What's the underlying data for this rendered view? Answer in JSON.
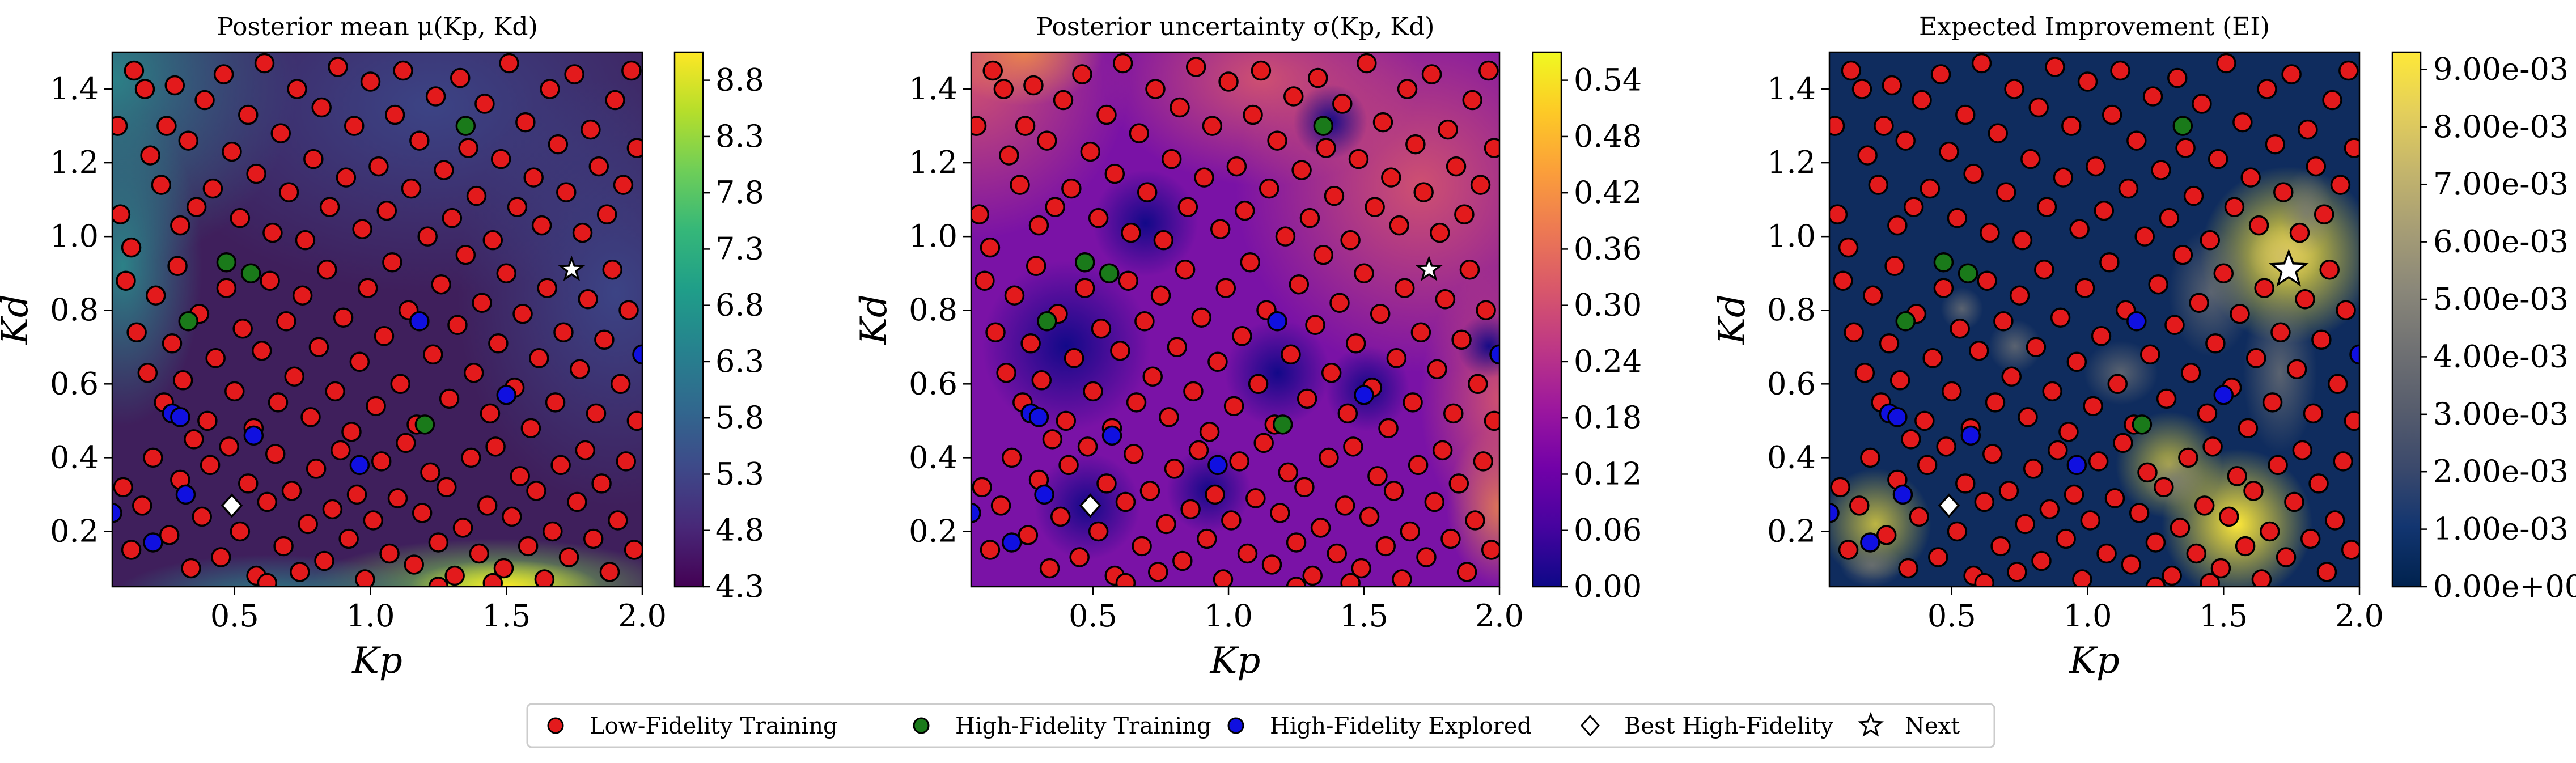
{
  "chart_data": [
    {
      "type": "heatmap",
      "title": "Posterior mean μ(Kp, Kd)",
      "xlabel": "Kp",
      "ylabel": "Kd",
      "xlim": [
        0.05,
        2.0
      ],
      "ylim": [
        0.05,
        1.5
      ],
      "xticks": [
        "0.5",
        "1.0",
        "1.5",
        "2.0"
      ],
      "yticks": [
        "0.2",
        "0.4",
        "0.6",
        "0.8",
        "1.0",
        "1.2",
        "1.4"
      ],
      "colormap": "viridis",
      "colorbar_range": [
        4.3,
        9.05
      ],
      "colorbar_ticks": [
        "4.3",
        "4.8",
        "5.3",
        "5.8",
        "6.3",
        "6.8",
        "7.3",
        "7.8",
        "8.3",
        "8.8"
      ],
      "surface": "low (≈4.5) across most of the domain, higher (≈6–7) toward the left and top-left edge, rising to ≈9 along the bottom edge near Kp≈1.5–1.9"
    },
    {
      "type": "heatmap",
      "title": "Posterior uncertainty σ(Kp, Kd)",
      "xlabel": "Kp",
      "ylabel": "Kd",
      "xlim": [
        0.05,
        2.0
      ],
      "ylim": [
        0.05,
        1.5
      ],
      "xticks": [
        "0.5",
        "1.0",
        "1.5",
        "2.0"
      ],
      "yticks": [
        "0.2",
        "0.4",
        "0.6",
        "0.8",
        "1.0",
        "1.2",
        "1.4"
      ],
      "colormap": "plasma",
      "colorbar_range": [
        0.0,
        0.57
      ],
      "colorbar_ticks": [
        "0.00",
        "0.06",
        "0.12",
        "0.18",
        "0.24",
        "0.30",
        "0.36",
        "0.42",
        "0.48",
        "0.54"
      ],
      "surface": "near zero around high-fidelity samples, ≈0.2–0.3 in the upper right region"
    },
    {
      "type": "heatmap",
      "title": "Expected Improvement (EI)",
      "xlabel": "Kp",
      "ylabel": "Kd",
      "xlim": [
        0.05,
        2.0
      ],
      "ylim": [
        0.05,
        1.5
      ],
      "xticks": [
        "0.5",
        "1.0",
        "1.5",
        "2.0"
      ],
      "yticks": [
        "0.2",
        "0.4",
        "0.6",
        "0.8",
        "1.0",
        "1.2",
        "1.4"
      ],
      "colormap": "cividis",
      "colorbar_range": [
        0.0,
        0.0093
      ],
      "colorbar_ticks": [
        "0.00e+00",
        "1.00e-03",
        "2.00e-03",
        "3.00e-03",
        "4.00e-03",
        "5.00e-03",
        "6.00e-03",
        "7.00e-03",
        "8.00e-03",
        "9.00e-03"
      ],
      "hotspots": [
        {
          "Kp": 1.74,
          "Kd": 0.95,
          "value": 0.009
        },
        {
          "Kp": 1.55,
          "Kd": 0.22,
          "value": 0.0072
        },
        {
          "Kp": 1.3,
          "Kd": 0.38,
          "value": 0.0042
        },
        {
          "Kp": 0.22,
          "Kd": 0.22,
          "value": 0.0045
        }
      ]
    }
  ],
  "points": {
    "low_fidelity": [
      [
        0.07,
        1.3
      ],
      [
        0.08,
        1.06
      ],
      [
        0.12,
        0.97
      ],
      [
        0.13,
        1.45
      ],
      [
        0.17,
        1.4
      ],
      [
        0.19,
        1.22
      ],
      [
        0.23,
        1.14
      ],
      [
        0.25,
        1.3
      ],
      [
        0.28,
        1.41
      ],
      [
        0.3,
        1.03
      ],
      [
        0.33,
        1.26
      ],
      [
        0.36,
        1.08
      ],
      [
        0.39,
        1.37
      ],
      [
        0.42,
        1.13
      ],
      [
        0.46,
        1.44
      ],
      [
        0.49,
        1.23
      ],
      [
        0.52,
        1.05
      ],
      [
        0.55,
        1.33
      ],
      [
        0.58,
        1.17
      ],
      [
        0.61,
        1.47
      ],
      [
        0.64,
        1.01
      ],
      [
        0.67,
        1.28
      ],
      [
        0.7,
        1.12
      ],
      [
        0.73,
        1.4
      ],
      [
        0.76,
        0.99
      ],
      [
        0.79,
        1.21
      ],
      [
        0.82,
        1.35
      ],
      [
        0.85,
        1.08
      ],
      [
        0.88,
        1.46
      ],
      [
        0.91,
        1.16
      ],
      [
        0.94,
        1.3
      ],
      [
        0.97,
        1.02
      ],
      [
        1.0,
        1.42
      ],
      [
        1.03,
        1.19
      ],
      [
        1.06,
        1.07
      ],
      [
        1.09,
        1.33
      ],
      [
        1.12,
        1.45
      ],
      [
        1.15,
        1.13
      ],
      [
        1.18,
        1.26
      ],
      [
        1.21,
        1.0
      ],
      [
        1.24,
        1.38
      ],
      [
        1.27,
        1.18
      ],
      [
        1.3,
        1.05
      ],
      [
        1.33,
        1.43
      ],
      [
        1.36,
        1.24
      ],
      [
        1.39,
        1.11
      ],
      [
        1.42,
        1.36
      ],
      [
        1.45,
        0.99
      ],
      [
        1.48,
        1.21
      ],
      [
        1.51,
        1.47
      ],
      [
        1.54,
        1.08
      ],
      [
        1.57,
        1.31
      ],
      [
        1.6,
        1.16
      ],
      [
        1.63,
        1.03
      ],
      [
        1.66,
        1.4
      ],
      [
        1.69,
        1.25
      ],
      [
        1.72,
        1.12
      ],
      [
        1.75,
        1.44
      ],
      [
        1.78,
        1.01
      ],
      [
        1.81,
        1.29
      ],
      [
        1.84,
        1.19
      ],
      [
        1.87,
        1.06
      ],
      [
        1.9,
        1.37
      ],
      [
        1.93,
        1.14
      ],
      [
        1.96,
        1.45
      ],
      [
        1.98,
        1.24
      ],
      [
        0.1,
        0.88
      ],
      [
        0.14,
        0.74
      ],
      [
        0.18,
        0.63
      ],
      [
        0.21,
        0.84
      ],
      [
        0.24,
        0.55
      ],
      [
        0.27,
        0.71
      ],
      [
        0.29,
        0.92
      ],
      [
        0.31,
        0.61
      ],
      [
        0.37,
        0.79
      ],
      [
        0.4,
        0.5
      ],
      [
        0.43,
        0.67
      ],
      [
        0.47,
        0.86
      ],
      [
        0.5,
        0.58
      ],
      [
        0.53,
        0.75
      ],
      [
        0.57,
        0.48
      ],
      [
        0.6,
        0.69
      ],
      [
        0.63,
        0.88
      ],
      [
        0.66,
        0.55
      ],
      [
        0.69,
        0.77
      ],
      [
        0.72,
        0.62
      ],
      [
        0.75,
        0.84
      ],
      [
        0.78,
        0.51
      ],
      [
        0.81,
        0.7
      ],
      [
        0.84,
        0.91
      ],
      [
        0.87,
        0.58
      ],
      [
        0.9,
        0.78
      ],
      [
        0.93,
        0.47
      ],
      [
        0.96,
        0.66
      ],
      [
        0.99,
        0.86
      ],
      [
        1.02,
        0.54
      ],
      [
        1.05,
        0.73
      ],
      [
        1.08,
        0.93
      ],
      [
        1.11,
        0.6
      ],
      [
        1.14,
        0.8
      ],
      [
        1.17,
        0.49
      ],
      [
        1.23,
        0.68
      ],
      [
        1.26,
        0.87
      ],
      [
        1.29,
        0.56
      ],
      [
        1.32,
        0.76
      ],
      [
        1.35,
        0.95
      ],
      [
        1.38,
        0.63
      ],
      [
        1.41,
        0.82
      ],
      [
        1.44,
        0.52
      ],
      [
        1.47,
        0.71
      ],
      [
        1.5,
        0.9
      ],
      [
        1.53,
        0.59
      ],
      [
        1.56,
        0.79
      ],
      [
        1.59,
        0.48
      ],
      [
        1.62,
        0.67
      ],
      [
        1.65,
        0.86
      ],
      [
        1.68,
        0.55
      ],
      [
        1.71,
        0.74
      ],
      [
        1.77,
        0.64
      ],
      [
        1.8,
        0.83
      ],
      [
        1.83,
        0.52
      ],
      [
        1.86,
        0.72
      ],
      [
        1.89,
        0.91
      ],
      [
        1.92,
        0.6
      ],
      [
        1.95,
        0.8
      ],
      [
        1.98,
        0.5
      ],
      [
        0.09,
        0.32
      ],
      [
        0.12,
        0.15
      ],
      [
        0.16,
        0.27
      ],
      [
        0.2,
        0.4
      ],
      [
        0.26,
        0.19
      ],
      [
        0.3,
        0.34
      ],
      [
        0.34,
        0.1
      ],
      [
        0.38,
        0.24
      ],
      [
        0.41,
        0.38
      ],
      [
        0.45,
        0.13
      ],
      [
        0.48,
        0.43
      ],
      [
        0.52,
        0.2
      ],
      [
        0.55,
        0.33
      ],
      [
        0.58,
        0.08
      ],
      [
        0.62,
        0.28
      ],
      [
        0.65,
        0.41
      ],
      [
        0.68,
        0.16
      ],
      [
        0.71,
        0.31
      ],
      [
        0.74,
        0.09
      ],
      [
        0.77,
        0.22
      ],
      [
        0.8,
        0.37
      ],
      [
        0.83,
        0.12
      ],
      [
        0.86,
        0.26
      ],
      [
        0.89,
        0.42
      ],
      [
        0.92,
        0.18
      ],
      [
        0.95,
        0.3
      ],
      [
        0.98,
        0.07
      ],
      [
        1.01,
        0.23
      ],
      [
        1.04,
        0.39
      ],
      [
        1.07,
        0.14
      ],
      [
        1.1,
        0.29
      ],
      [
        1.13,
        0.44
      ],
      [
        1.16,
        0.11
      ],
      [
        1.19,
        0.25
      ],
      [
        1.22,
        0.36
      ],
      [
        1.25,
        0.17
      ],
      [
        1.28,
        0.32
      ],
      [
        1.31,
        0.08
      ],
      [
        1.34,
        0.21
      ],
      [
        1.37,
        0.4
      ],
      [
        1.4,
        0.14
      ],
      [
        1.43,
        0.27
      ],
      [
        1.46,
        0.43
      ],
      [
        1.49,
        0.1
      ],
      [
        1.52,
        0.24
      ],
      [
        1.55,
        0.35
      ],
      [
        1.58,
        0.16
      ],
      [
        1.61,
        0.31
      ],
      [
        1.64,
        0.07
      ],
      [
        1.67,
        0.2
      ],
      [
        1.7,
        0.38
      ],
      [
        1.73,
        0.13
      ],
      [
        1.76,
        0.28
      ],
      [
        1.79,
        0.42
      ],
      [
        1.82,
        0.18
      ],
      [
        1.85,
        0.33
      ],
      [
        1.88,
        0.09
      ],
      [
        1.91,
        0.23
      ],
      [
        1.94,
        0.39
      ],
      [
        1.97,
        0.15
      ],
      [
        0.62,
        0.06
      ],
      [
        1.45,
        0.06
      ],
      [
        1.25,
        0.05
      ],
      [
        0.35,
        0.45
      ]
    ],
    "high_fidelity_training": [
      [
        0.33,
        0.77
      ],
      [
        0.47,
        0.93
      ],
      [
        0.56,
        0.9
      ],
      [
        1.2,
        0.49
      ],
      [
        1.35,
        1.3
      ]
    ],
    "high_fidelity_explored": [
      [
        0.27,
        0.52
      ],
      [
        0.3,
        0.51
      ],
      [
        0.32,
        0.3
      ],
      [
        0.2,
        0.17
      ],
      [
        0.57,
        0.46
      ],
      [
        0.96,
        0.38
      ],
      [
        1.18,
        0.77
      ],
      [
        1.5,
        0.57
      ],
      [
        2.0,
        0.68
      ],
      [
        0.05,
        0.25
      ]
    ],
    "best_high_fidelity": [
      [
        0.49,
        0.27
      ]
    ],
    "next": [
      [
        1.74,
        0.91
      ]
    ]
  },
  "legend": {
    "items": [
      {
        "label": "Low-Fidelity Training",
        "marker": "circle",
        "color": "#e31a1c"
      },
      {
        "label": "High-Fidelity Training",
        "marker": "circle",
        "color": "#1a7a1a"
      },
      {
        "label": "High-Fidelity Explored",
        "marker": "circle",
        "color": "#1010e0"
      },
      {
        "label": "Best High-Fidelity",
        "marker": "diamond",
        "color": "#ffffff"
      },
      {
        "label": "Next",
        "marker": "star",
        "color": "#ffffff"
      }
    ]
  },
  "colors": {
    "low": "#e31a1c",
    "high_train": "#1a7a1a",
    "high_explored": "#1010e0",
    "edge": "#000000"
  }
}
